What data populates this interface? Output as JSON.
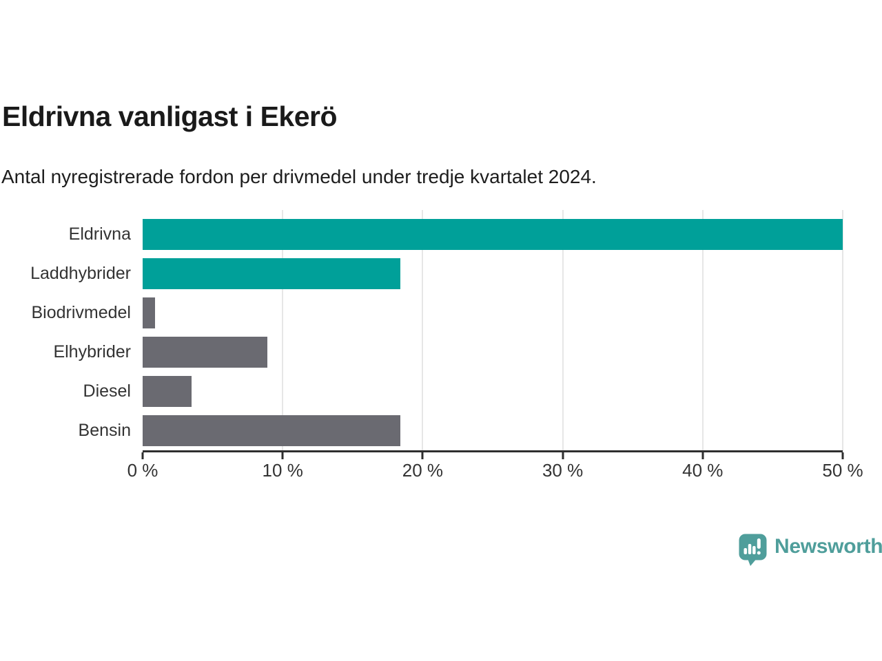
{
  "title": "Eldrivna vanligast i Ekerö",
  "subtitle": "Antal nyregistrerade fordon per drivmedel under tredje kvartalet 2024.",
  "chart_data": {
    "type": "bar",
    "orientation": "horizontal",
    "title": "Eldrivna vanligast i Ekerö",
    "subtitle": "Antal nyregistrerade fordon per drivmedel under tredje kvartalet 2024.",
    "categories": [
      "Eldrivna",
      "Laddhybrider",
      "Biodrivmedel",
      "Elhybrider",
      "Diesel",
      "Bensin"
    ],
    "values": [
      50.0,
      18.4,
      0.9,
      8.9,
      3.5,
      18.4
    ],
    "unit": "%",
    "xlabel": "",
    "ylabel": "",
    "xlim": [
      0,
      50
    ],
    "xticks": [
      0,
      10,
      20,
      30,
      40,
      50
    ],
    "xtick_labels": [
      "0 %",
      "10 %",
      "20 %",
      "30 %",
      "40 %",
      "50 %"
    ],
    "bar_colors": [
      "#00a099",
      "#00a099",
      "#6a6a71",
      "#6a6a71",
      "#6a6a71",
      "#6a6a71"
    ],
    "accent_color": "#00a099",
    "muted_color": "#6a6a71",
    "grid": "vertical gridlines, light gray, on",
    "legend": "none"
  },
  "footer": {
    "brand": "Newsworthy",
    "brand_color": "#4f9e9b",
    "logo_icon": "speech-bubble-bar-chart-exclamation"
  }
}
